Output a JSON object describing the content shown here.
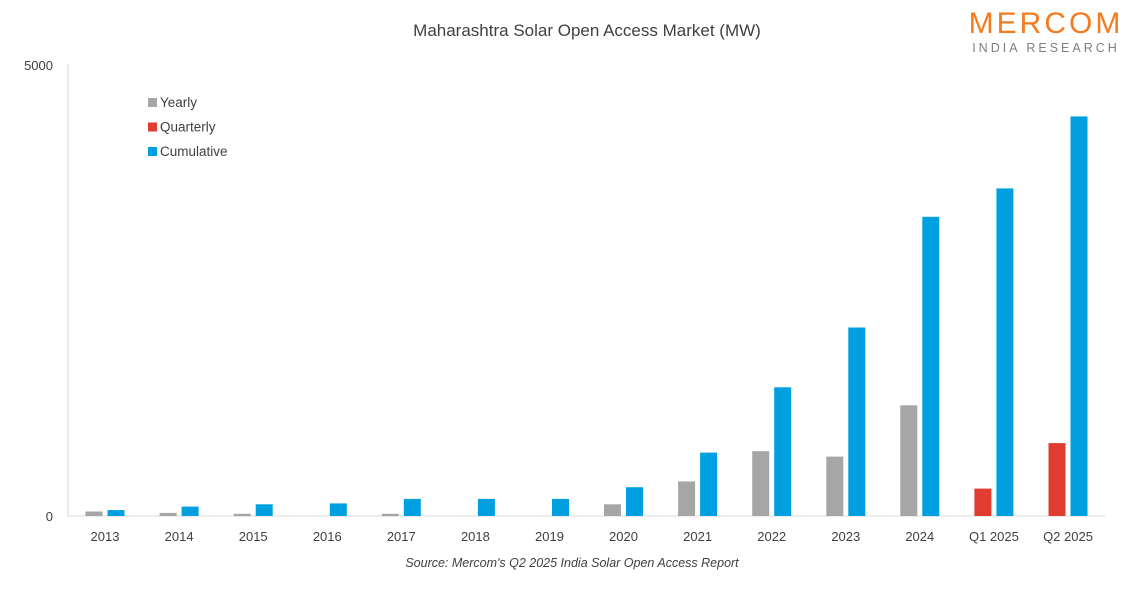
{
  "chart_data": {
    "type": "bar",
    "title": "Maharashtra Solar Open Access Market (MW)",
    "categories": [
      "2013",
      "2014",
      "2015",
      "2016",
      "2017",
      "2018",
      "2019",
      "2020",
      "2021",
      "2022",
      "2023",
      "2024",
      "Q1 2025",
      "Q2 2025"
    ],
    "series": [
      {
        "name": "Yearly",
        "color": "#a6a6a6",
        "values": [
          50,
          35,
          25,
          null,
          25,
          null,
          null,
          130,
          385,
          720,
          660,
          1230,
          null,
          null
        ]
      },
      {
        "name": "Quarterly",
        "color": "#e03c31",
        "values": [
          null,
          null,
          null,
          null,
          null,
          null,
          null,
          null,
          null,
          null,
          null,
          null,
          305,
          810
        ]
      },
      {
        "name": "Cumulative",
        "color": "#009fdf",
        "values": [
          65,
          105,
          130,
          140,
          190,
          190,
          190,
          320,
          705,
          1430,
          2095,
          3325,
          3640,
          4440
        ]
      }
    ],
    "ylim": [
      0,
      5000
    ],
    "yticks": [
      "0",
      "5000"
    ],
    "xlabel": "",
    "ylabel": "",
    "legend_position": "top-left",
    "grid": false,
    "source": "Source: Mercom's Q2 2025 India Solar Open Access Report"
  },
  "logo": {
    "name": "MERCOM",
    "subtitle": "INDIA RESEARCH",
    "color": "#f47b20"
  }
}
